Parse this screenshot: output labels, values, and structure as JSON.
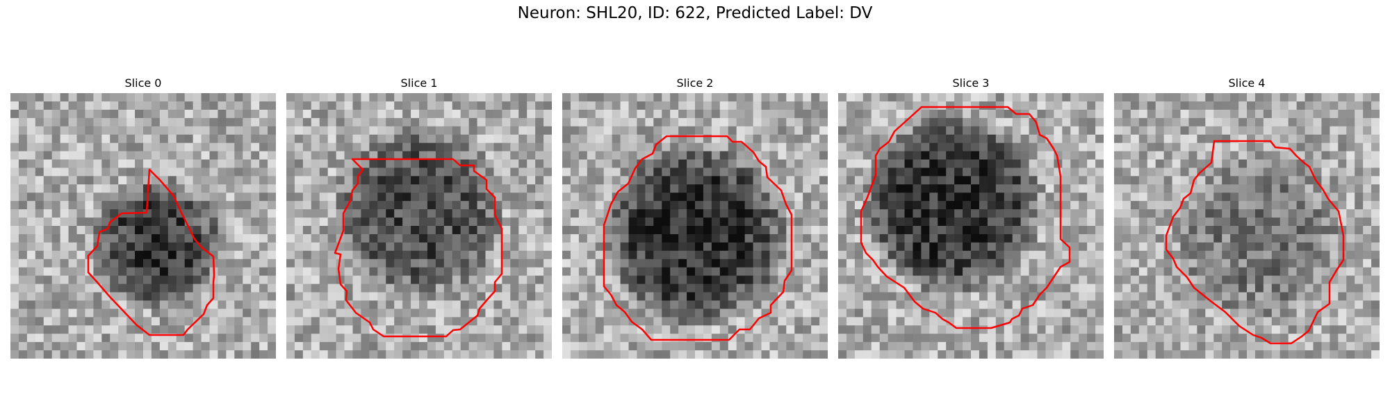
{
  "figure": {
    "title": "Neuron: SHL20, ID: 622, Predicted Label: DV",
    "outline_color": "#ff0000",
    "colormap": "grayscale",
    "grid_size": 32
  },
  "panels": [
    {
      "title": "Slice 0",
      "blob_cx": 0.55,
      "blob_cy": 0.57,
      "blob_r": 0.26,
      "blob_darkness": 0.45,
      "texture_seed": 11
    },
    {
      "title": "Slice 1",
      "blob_cx": 0.5,
      "blob_cy": 0.45,
      "blob_r": 0.33,
      "blob_darkness": 0.38,
      "texture_seed": 23
    },
    {
      "title": "Slice 2",
      "blob_cx": 0.5,
      "blob_cy": 0.53,
      "blob_r": 0.36,
      "blob_darkness": 0.5,
      "texture_seed": 37
    },
    {
      "title": "Slice 3",
      "blob_cx": 0.43,
      "blob_cy": 0.42,
      "blob_r": 0.35,
      "blob_darkness": 0.5,
      "texture_seed": 41
    },
    {
      "title": "Slice 4",
      "blob_cx": 0.55,
      "blob_cy": 0.55,
      "blob_r": 0.33,
      "blob_darkness": 0.2,
      "texture_seed": 53
    }
  ]
}
